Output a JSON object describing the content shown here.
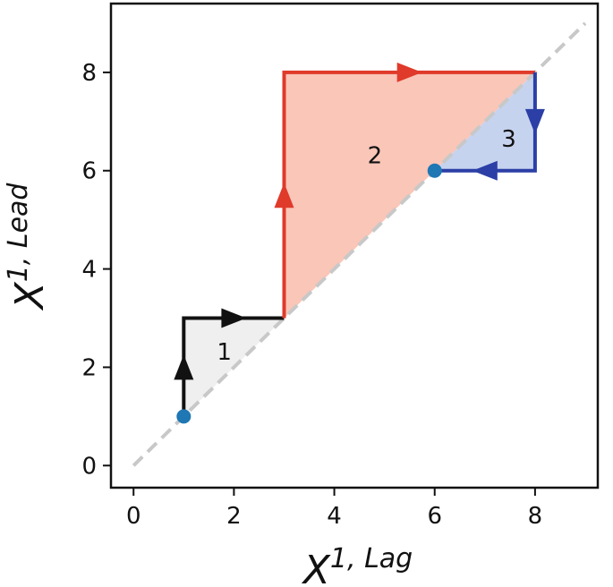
{
  "chart_data": {
    "type": "line",
    "xlabel": {
      "base": "X",
      "sup": "1, Lag"
    },
    "ylabel": {
      "base": "X",
      "sup": "1, Lead"
    },
    "xlim": [
      -0.45,
      9.25
    ],
    "ylim": [
      -0.45,
      9.4
    ],
    "xticks": [
      0,
      2,
      4,
      6,
      8
    ],
    "yticks": [
      0,
      2,
      4,
      6,
      8
    ],
    "series": [
      {
        "name": "1",
        "color": "#111111",
        "fill": "#efefef",
        "x": [
          1,
          1,
          3
        ],
        "values": [
          1,
          3,
          3
        ]
      },
      {
        "name": "2",
        "color": "#e03a2a",
        "fill": "#f9c6b8",
        "x": [
          3,
          3,
          8
        ],
        "values": [
          3,
          8,
          8
        ]
      },
      {
        "name": "3",
        "color": "#2b3fa6",
        "fill": "#c6d3ef",
        "x": [
          8,
          8,
          6
        ],
        "values": [
          8,
          6,
          6
        ]
      }
    ],
    "diagonal": {
      "color": "#c8c8c8",
      "x": [
        0,
        9
      ],
      "values": [
        0,
        9
      ]
    },
    "points": {
      "color": "#1f77b4",
      "x": [
        1,
        6
      ],
      "values": [
        1,
        6
      ]
    }
  }
}
